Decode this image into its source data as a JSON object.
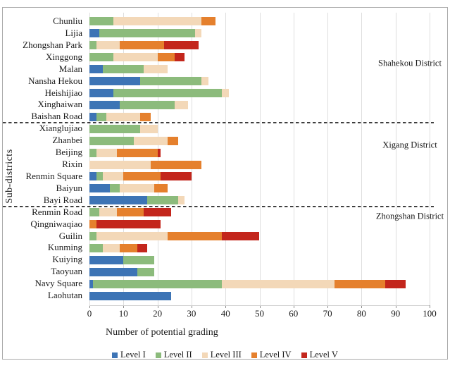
{
  "axes": {
    "xlabel": "Number of potential grading",
    "ylabel": "Sub-districts"
  },
  "legend": {
    "items": [
      {
        "label": "Level I",
        "color": "#3d74b5"
      },
      {
        "label": "Level II",
        "color": "#8cbb7c"
      },
      {
        "label": "Level III",
        "color": "#f3d8b8"
      },
      {
        "label": "Level IV",
        "color": "#e5802d"
      },
      {
        "label": "Level V",
        "color": "#c3261c"
      }
    ]
  },
  "chart_data": {
    "type": "bar",
    "orientation": "horizontal",
    "stacked": true,
    "title": "",
    "xlabel": "Number of potential grading",
    "ylabel": "Sub-districts",
    "xlim": [
      0,
      100
    ],
    "xticks": [
      0,
      10,
      20,
      30,
      40,
      50,
      60,
      70,
      80,
      90,
      100
    ],
    "grid": true,
    "legend_position": "bottom",
    "series_names": [
      "Level I",
      "Level II",
      "Level III",
      "Level IV",
      "Level V"
    ],
    "series_colors": [
      "#3d74b5",
      "#8cbb7c",
      "#f3d8b8",
      "#e5802d",
      "#c3261c"
    ],
    "groups": [
      {
        "district": "Shahekou District",
        "sub_districts": [
          {
            "name": "Chunliu",
            "values": [
              0,
              7,
              26,
              4,
              0
            ]
          },
          {
            "name": "Lijia",
            "values": [
              3,
              28,
              2,
              0,
              0
            ]
          },
          {
            "name": "Zhongshan Park",
            "values": [
              0,
              2,
              7,
              13,
              10
            ]
          },
          {
            "name": "Xinggong",
            "values": [
              0,
              7,
              13,
              5,
              3
            ]
          },
          {
            "name": "Malan",
            "values": [
              4,
              12,
              7,
              0,
              0
            ]
          },
          {
            "name": "Nansha Hekou",
            "values": [
              15,
              18,
              2,
              0,
              0
            ]
          },
          {
            "name": "Heishijiao",
            "values": [
              7,
              32,
              2,
              0,
              0
            ]
          },
          {
            "name": "Xinghaiwan",
            "values": [
              9,
              16,
              4,
              0,
              0
            ]
          },
          {
            "name": "Baishan Road",
            "values": [
              2,
              3,
              10,
              3,
              0
            ]
          }
        ]
      },
      {
        "district": "Xigang District",
        "sub_districts": [
          {
            "name": "Xianglujiao",
            "values": [
              0,
              15,
              5,
              0,
              0
            ]
          },
          {
            "name": "Zhanbei",
            "values": [
              0,
              13,
              10,
              3,
              0
            ]
          },
          {
            "name": "Beijing",
            "values": [
              0,
              2,
              6,
              12,
              1
            ]
          },
          {
            "name": "Rixin",
            "values": [
              0,
              0,
              18,
              15,
              0
            ]
          },
          {
            "name": "Renmin Square",
            "values": [
              2,
              2,
              6,
              11,
              9
            ]
          },
          {
            "name": "Baiyun",
            "values": [
              6,
              3,
              10,
              4,
              0
            ]
          },
          {
            "name": "Bayi Road",
            "values": [
              17,
              9,
              2,
              0,
              0
            ]
          }
        ]
      },
      {
        "district": "Zhongshan District",
        "sub_districts": [
          {
            "name": "Renmin Road",
            "values": [
              0,
              3,
              5,
              8,
              8
            ]
          },
          {
            "name": "Qingniwaqiao",
            "values": [
              0,
              0,
              0,
              2,
              19
            ]
          },
          {
            "name": "Guilin",
            "values": [
              0,
              2,
              21,
              16,
              11
            ]
          },
          {
            "name": "Kunming",
            "values": [
              0,
              4,
              5,
              5,
              3
            ]
          },
          {
            "name": "Kuiying",
            "values": [
              10,
              9,
              0,
              0,
              0
            ]
          },
          {
            "name": "Taoyuan",
            "values": [
              14,
              5,
              0,
              0,
              0
            ]
          },
          {
            "name": "Navy Square",
            "values": [
              1,
              38,
              33,
              15,
              6
            ]
          },
          {
            "name": "Laohutan",
            "values": [
              24,
              0,
              0,
              0,
              0
            ]
          }
        ]
      }
    ]
  }
}
